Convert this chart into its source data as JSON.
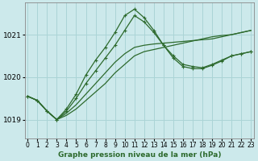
{
  "title": "Graphe pression niveau de la mer (hPa)",
  "background_color": "#cce9eb",
  "grid_color": "#aad4d6",
  "line_color": "#2d6a2d",
  "ylim": [
    1018.55,
    1021.75
  ],
  "xlim": [
    -0.3,
    23.3
  ],
  "yticks": [
    1019,
    1020,
    1021
  ],
  "xticks": [
    0,
    1,
    2,
    3,
    4,
    5,
    6,
    7,
    8,
    9,
    10,
    11,
    12,
    13,
    14,
    15,
    16,
    17,
    18,
    19,
    20,
    21,
    22,
    23
  ],
  "series": [
    {
      "y": [
        1019.55,
        1019.45,
        1019.2,
        1019.0,
        1019.1,
        1019.25,
        1019.45,
        1019.65,
        1019.85,
        1020.1,
        1020.3,
        1020.5,
        1020.6,
        1020.65,
        1020.7,
        1020.75,
        1020.8,
        1020.85,
        1020.9,
        1020.95,
        1020.98,
        1021.0,
        1021.05,
        1021.1
      ],
      "marker": false,
      "lw": 0.9
    },
    {
      "y": [
        1019.55,
        1019.45,
        1019.2,
        1019.0,
        1019.15,
        1019.35,
        1019.6,
        1019.85,
        1020.1,
        1020.35,
        1020.55,
        1020.7,
        1020.75,
        1020.78,
        1020.8,
        1020.82,
        1020.84,
        1020.86,
        1020.88,
        1020.9,
        1020.95,
        1021.0,
        1021.05,
        1021.1
      ],
      "marker": false,
      "lw": 0.9
    },
    {
      "y": [
        1019.55,
        1019.45,
        1019.2,
        1019.0,
        1019.2,
        1019.5,
        1019.85,
        1020.15,
        1020.45,
        1020.75,
        1021.1,
        1021.45,
        1021.3,
        1021.05,
        1020.75,
        1020.5,
        1020.3,
        1020.25,
        1020.22,
        1020.3,
        1020.4,
        1020.5,
        1020.55,
        1020.6
      ],
      "marker": true,
      "lw": 0.9
    },
    {
      "y": [
        1019.55,
        1019.45,
        1019.2,
        1019.0,
        1019.25,
        1019.6,
        1020.05,
        1020.4,
        1020.7,
        1021.05,
        1021.45,
        1021.6,
        1021.4,
        1021.1,
        1020.75,
        1020.45,
        1020.25,
        1020.2,
        1020.2,
        1020.28,
        1020.38,
        1020.5,
        1020.55,
        1020.6
      ],
      "marker": true,
      "lw": 0.9
    }
  ]
}
